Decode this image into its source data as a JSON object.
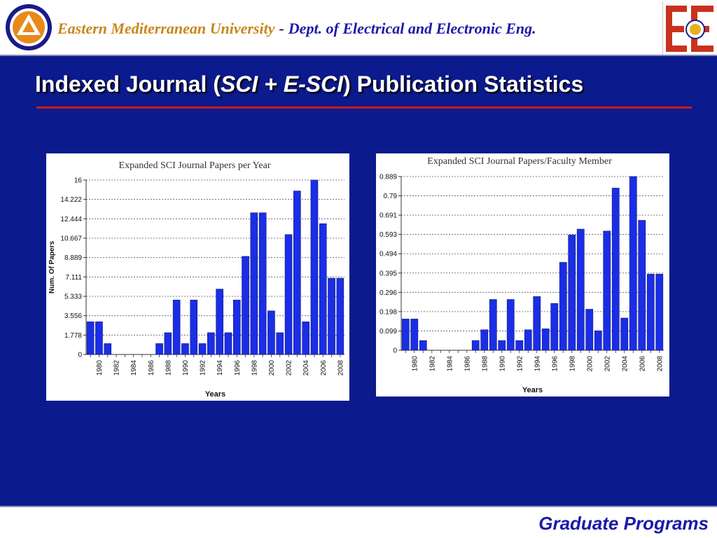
{
  "header": {
    "university": "Eastern Mediterranean University",
    "separator": "-",
    "department": "Dept. of Electrical and Electronic Eng.",
    "logo_right_text": "EE"
  },
  "slide": {
    "title_pre": "Indexed Journal (",
    "title_em": "SCI + E-SCI",
    "title_post": ") Publication Statistics"
  },
  "footer": {
    "label": "Graduate Programs"
  },
  "colors": {
    "background": "#0b1a8c",
    "bar": "#1a2ee6",
    "rule": "#d01818",
    "header_text": "#1a1aa8",
    "university_text": "#c8871a"
  },
  "chart_data": [
    {
      "type": "bar",
      "title": "Expanded SCI Journal Papers per Year",
      "xlabel": "Years",
      "ylabel": "Num. Of Papers",
      "ylim": [
        0,
        16
      ],
      "y_ticks": [
        "0",
        "1.778",
        "3.556",
        "5.333",
        "7.111",
        "8.889",
        "10.667",
        "12.444",
        "14.222",
        "16"
      ],
      "x_tick_labels": [
        "1980",
        "1982",
        "1984",
        "1986",
        "1988",
        "1990",
        "1992",
        "1994",
        "1996",
        "1998",
        "2000",
        "2002",
        "2004",
        "2006",
        "2008"
      ],
      "grid": true,
      "categories": [
        "1979",
        "1980",
        "1981",
        "1982",
        "1983",
        "1984",
        "1985",
        "1986",
        "1987",
        "1988",
        "1989",
        "1990",
        "1991",
        "1992",
        "1993",
        "1994",
        "1995",
        "1996",
        "1997",
        "1998",
        "1999",
        "2000",
        "2001",
        "2002",
        "2003",
        "2004",
        "2005",
        "2006",
        "2007",
        "2008"
      ],
      "values": [
        3,
        3,
        1,
        0,
        0,
        0,
        0,
        0,
        1,
        2,
        5,
        1,
        5,
        1,
        2,
        6,
        2,
        5,
        9,
        13,
        13,
        4,
        2,
        11,
        15,
        3,
        16,
        12,
        7,
        7
      ]
    },
    {
      "type": "bar",
      "title": "Expanded SCI Journal Papers/Faculty Member",
      "xlabel": "Years",
      "ylabel": "",
      "ylim": [
        0,
        0.889
      ],
      "y_ticks": [
        "0",
        "0.099",
        "0.198",
        "0.296",
        "0.395",
        "0.494",
        "0.593",
        "0.691",
        "0.79",
        "0.889"
      ],
      "x_tick_labels": [
        "1980",
        "1982",
        "1984",
        "1986",
        "1988",
        "1990",
        "1992",
        "1994",
        "1996",
        "1998",
        "2000",
        "2002",
        "2004",
        "2006",
        "2008"
      ],
      "grid": true,
      "categories": [
        "1979",
        "1980",
        "1981",
        "1982",
        "1983",
        "1984",
        "1985",
        "1986",
        "1987",
        "1988",
        "1989",
        "1990",
        "1991",
        "1992",
        "1993",
        "1994",
        "1995",
        "1996",
        "1997",
        "1998",
        "1999",
        "2000",
        "2001",
        "2002",
        "2003",
        "2004",
        "2005",
        "2006",
        "2007",
        "2008"
      ],
      "values": [
        0.16,
        0.16,
        0.05,
        0,
        0,
        0,
        0,
        0,
        0.05,
        0.105,
        0.26,
        0.05,
        0.26,
        0.05,
        0.105,
        0.275,
        0.11,
        0.24,
        0.45,
        0.59,
        0.62,
        0.21,
        0.1,
        0.61,
        0.83,
        0.165,
        0.889,
        0.665,
        0.39,
        0.39
      ]
    }
  ]
}
